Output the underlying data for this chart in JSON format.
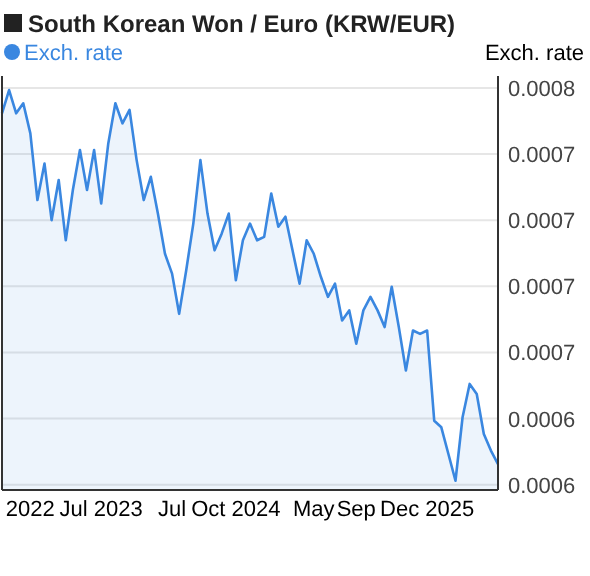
{
  "chart_data": {
    "type": "area",
    "title": "South Korean Won / Euro (KRW/EUR)",
    "ylabel": "Exch. rate",
    "legend": "top left",
    "grid": "y",
    "categories": [
      null,
      null,
      null,
      null,
      "2022",
      null,
      null,
      null,
      null,
      null,
      null,
      null,
      null,
      null,
      "Jul 2023",
      null,
      null,
      null,
      null,
      null,
      null,
      null,
      null,
      null,
      "Jul",
      null,
      null,
      null,
      null,
      null,
      null,
      null,
      null,
      "Oct 2024",
      null,
      null,
      null,
      null,
      null,
      null,
      null,
      null,
      null,
      null,
      "May",
      null,
      null,
      null,
      null,
      null,
      "Sep",
      null,
      null,
      null,
      null,
      null,
      null,
      null,
      null,
      null,
      "Dec 2025",
      null,
      null,
      null,
      null,
      null,
      null,
      null,
      null,
      null,
      null
    ],
    "ylim": [
      0.000598,
      0.0007545
    ],
    "yticks": [
      {
        "value": 0.00075,
        "label": "0.0008"
      },
      {
        "value": 0.000725,
        "label": "0.0007"
      },
      {
        "value": 0.0007,
        "label": "0.0007"
      },
      {
        "value": 0.000675,
        "label": "0.0007"
      },
      {
        "value": 0.00065,
        "label": "0.0007"
      },
      {
        "value": 0.000625,
        "label": "0.0006"
      },
      {
        "value": 0.0006,
        "label": "0.0006"
      }
    ],
    "series": [
      {
        "name": "Exch. rate",
        "color": "#3a87e0",
        "values": [
          0.0007404,
          0.0007492,
          0.0007404,
          0.0007442,
          0.0007328,
          0.0007076,
          0.0007214,
          0.0007,
          0.0007152,
          0.0006924,
          0.0007114,
          0.0007265,
          0.0007114,
          0.0007265,
          0.0007063,
          0.000729,
          0.0007442,
          0.0007366,
          0.0007417,
          0.0007227,
          0.0007076,
          0.0007164,
          0.0007025,
          0.0006873,
          0.0006798,
          0.0006646,
          0.0006811,
          0.0006987,
          0.0007227,
          0.0007025,
          0.0006886,
          0.0006949,
          0.0007025,
          0.0006773,
          0.0006924,
          0.0006987,
          0.0006924,
          0.0006937,
          0.0007101,
          0.0006975,
          0.0007013,
          0.0006886,
          0.000676,
          0.0006924,
          0.0006873,
          0.0006786,
          0.000671,
          0.000676,
          0.0006621,
          0.0006659,
          0.0006533,
          0.0006659,
          0.000671,
          0.0006659,
          0.0006596,
          0.0006748,
          0.0006596,
          0.0006432,
          0.0006583,
          0.000657,
          0.0006583,
          0.0006242,
          0.0006217,
          0.0006116,
          0.0006015,
          0.0006255,
          0.0006381,
          0.0006343,
          0.0006192,
          0.0006129,
          0.0006078
        ]
      }
    ]
  }
}
